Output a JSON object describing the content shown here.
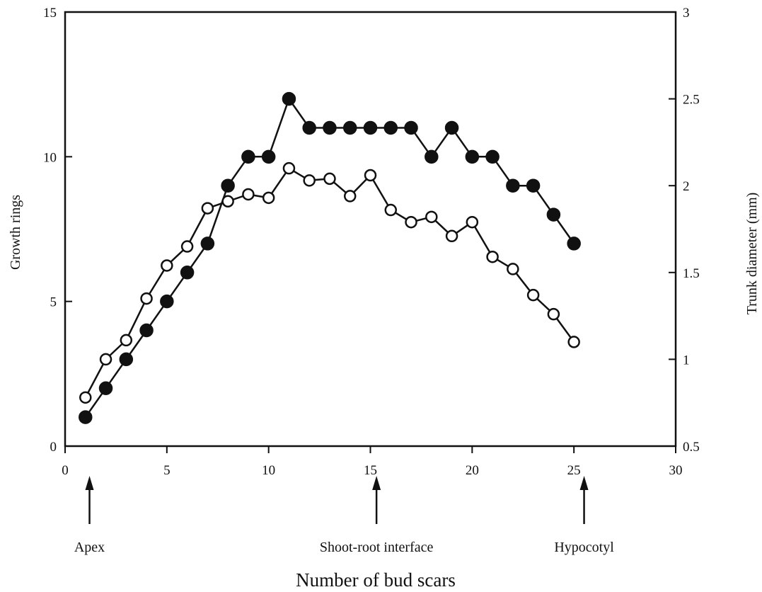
{
  "chart_data": {
    "type": "line",
    "xlabel": "Number of bud scars",
    "ylabel": "Growth rings",
    "y2label": "Trunk diameter (mm)",
    "xlim": [
      0,
      30
    ],
    "ylim": [
      0,
      15
    ],
    "y2lim": [
      0.5,
      3
    ],
    "xticks": [
      "0",
      "5",
      "10",
      "15",
      "20",
      "25",
      "30"
    ],
    "yticks": [
      "0",
      "5",
      "10",
      "15"
    ],
    "y2ticks": [
      "0.5",
      "1",
      "1.5",
      "2",
      "2.5",
      "3"
    ],
    "grid": false,
    "series": [
      {
        "axis": "left",
        "marker": "filled-circle",
        "x": [
          1,
          2,
          3,
          4,
          5,
          6,
          7,
          8,
          9,
          10,
          11,
          12,
          13,
          14,
          15,
          16,
          17,
          18,
          19,
          20,
          21,
          22,
          23,
          24,
          25
        ],
        "values": [
          1,
          2,
          3,
          4,
          5,
          6,
          7,
          9,
          10,
          10,
          12,
          11,
          11,
          11,
          11,
          11,
          11,
          10,
          11,
          10,
          10,
          9,
          9,
          8,
          7
        ]
      },
      {
        "axis": "right",
        "marker": "open-circle",
        "x": [
          1,
          2,
          3,
          4,
          5,
          6,
          7,
          8,
          9,
          10,
          11,
          12,
          13,
          14,
          15,
          16,
          17,
          18,
          19,
          20,
          21,
          22,
          23,
          24,
          25
        ],
        "values": [
          0.78,
          1.0,
          1.11,
          1.35,
          1.54,
          1.65,
          1.87,
          1.91,
          1.95,
          1.93,
          2.1,
          2.03,
          2.04,
          1.94,
          2.06,
          1.86,
          1.79,
          1.82,
          1.71,
          1.79,
          1.59,
          1.52,
          1.37,
          1.26,
          1.1
        ]
      }
    ],
    "annotations": [
      {
        "x": 1.2,
        "label": "Apex"
      },
      {
        "x": 15.3,
        "label": "Shoot-root interface"
      },
      {
        "x": 25.5,
        "label": "Hypocotyl"
      }
    ]
  }
}
